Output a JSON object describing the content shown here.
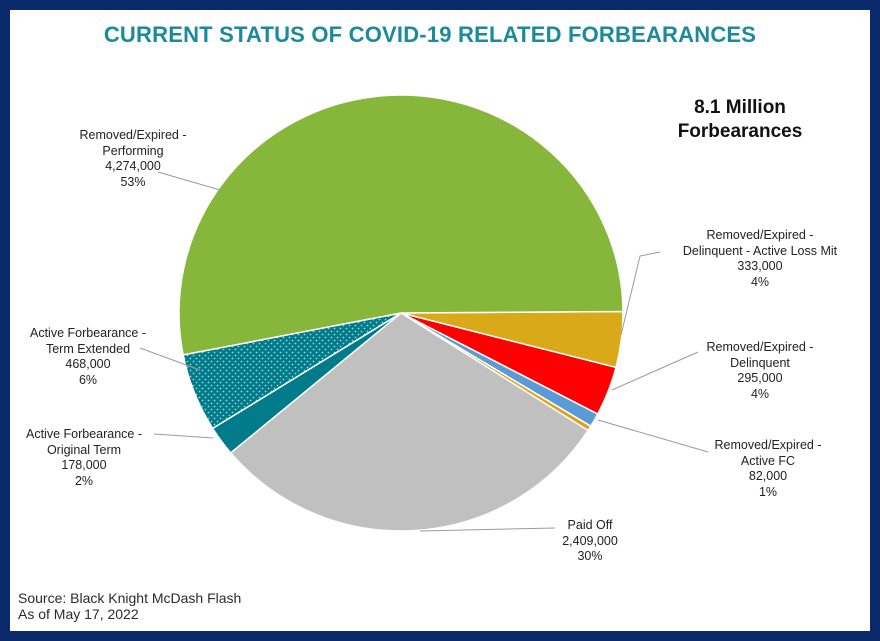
{
  "chart_data": {
    "type": "pie",
    "title": "CURRENT STATUS OF COVID-19 RELATED FORBEARANCES",
    "subtitle_lines": [
      "8.1 Million",
      "Forbearances"
    ],
    "slices": [
      {
        "label_lines": [
          "Removed/Expired -",
          "Performing"
        ],
        "value": 4274000,
        "value_text": "4,274,000",
        "percent_text": "53%",
        "color": "#86b73a",
        "pattern": "solid"
      },
      {
        "label_lines": [
          "Removed/Expired -",
          "Delinquent  - Active Loss Mit"
        ],
        "value": 333000,
        "value_text": "333,000",
        "percent_text": "4%",
        "color": "#d9a919",
        "pattern": "solid"
      },
      {
        "label_lines": [
          "Removed/Expired -",
          "Delinquent"
        ],
        "value": 295000,
        "value_text": "295,000",
        "percent_text": "4%",
        "color": "#ff0000",
        "pattern": "solid"
      },
      {
        "label_lines": [
          "Removed/Expired -",
          "Active FC"
        ],
        "value": 82000,
        "value_text": "82,000",
        "percent_text": "1%",
        "color": "#5a9bd5",
        "pattern": "solid"
      },
      {
        "label_lines": [],
        "value": 30000,
        "value_text": "",
        "percent_text": "",
        "color": "#e0a020",
        "pattern": "solid"
      },
      {
        "label_lines": [
          "Paid Off"
        ],
        "value": 2409000,
        "value_text": "2,409,000",
        "percent_text": "30%",
        "color": "#c0c0c0",
        "pattern": "solid"
      },
      {
        "label_lines": [
          "Active Forbearance -",
          "Original Term"
        ],
        "value": 178000,
        "value_text": "178,000",
        "percent_text": "2%",
        "color": "#007b8a",
        "pattern": "solid"
      },
      {
        "label_lines": [
          "Active Forbearance -",
          "Term Extended"
        ],
        "value": 468000,
        "value_text": "468,000",
        "percent_text": "6%",
        "color": "#007b8a",
        "pattern": "dots"
      }
    ],
    "start_direction": "slightly-above-east",
    "direction": "clockwise"
  },
  "footer": {
    "source_line1": "Source: Black Knight McDash Flash",
    "source_line2": "As of May 17, 2022"
  },
  "colors": {
    "frame": "#0b2a6b",
    "title": "#1a8a9c",
    "leader": "#9a9a9a"
  }
}
